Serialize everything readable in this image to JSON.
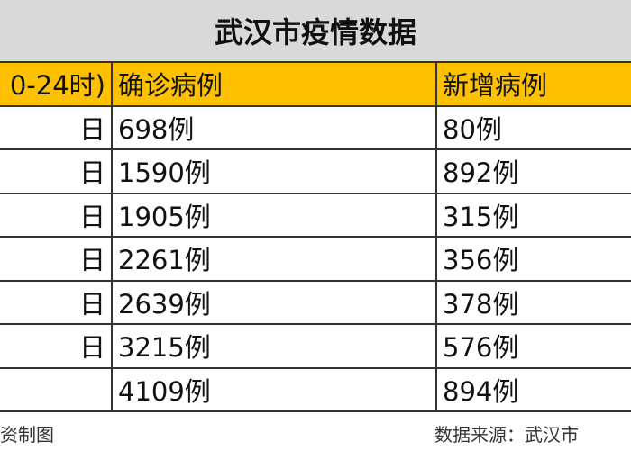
{
  "title": "武汉市疫情数据",
  "table": {
    "header": [
      "0-24时)",
      "确诊病例",
      "新增病例"
    ],
    "rows": [
      [
        "日",
        "698例",
        "80例"
      ],
      [
        "日",
        "1590例",
        "892例"
      ],
      [
        "日",
        "1905例",
        "315例"
      ],
      [
        "日",
        "2261例",
        "356例"
      ],
      [
        "日",
        "2639例",
        "378例"
      ],
      [
        "日",
        "3215例",
        "576例"
      ],
      [
        null,
        "4109例",
        "894例"
      ]
    ]
  },
  "footer": {
    "left": "资制图",
    "right": "数据来源：武汉市"
  }
}
